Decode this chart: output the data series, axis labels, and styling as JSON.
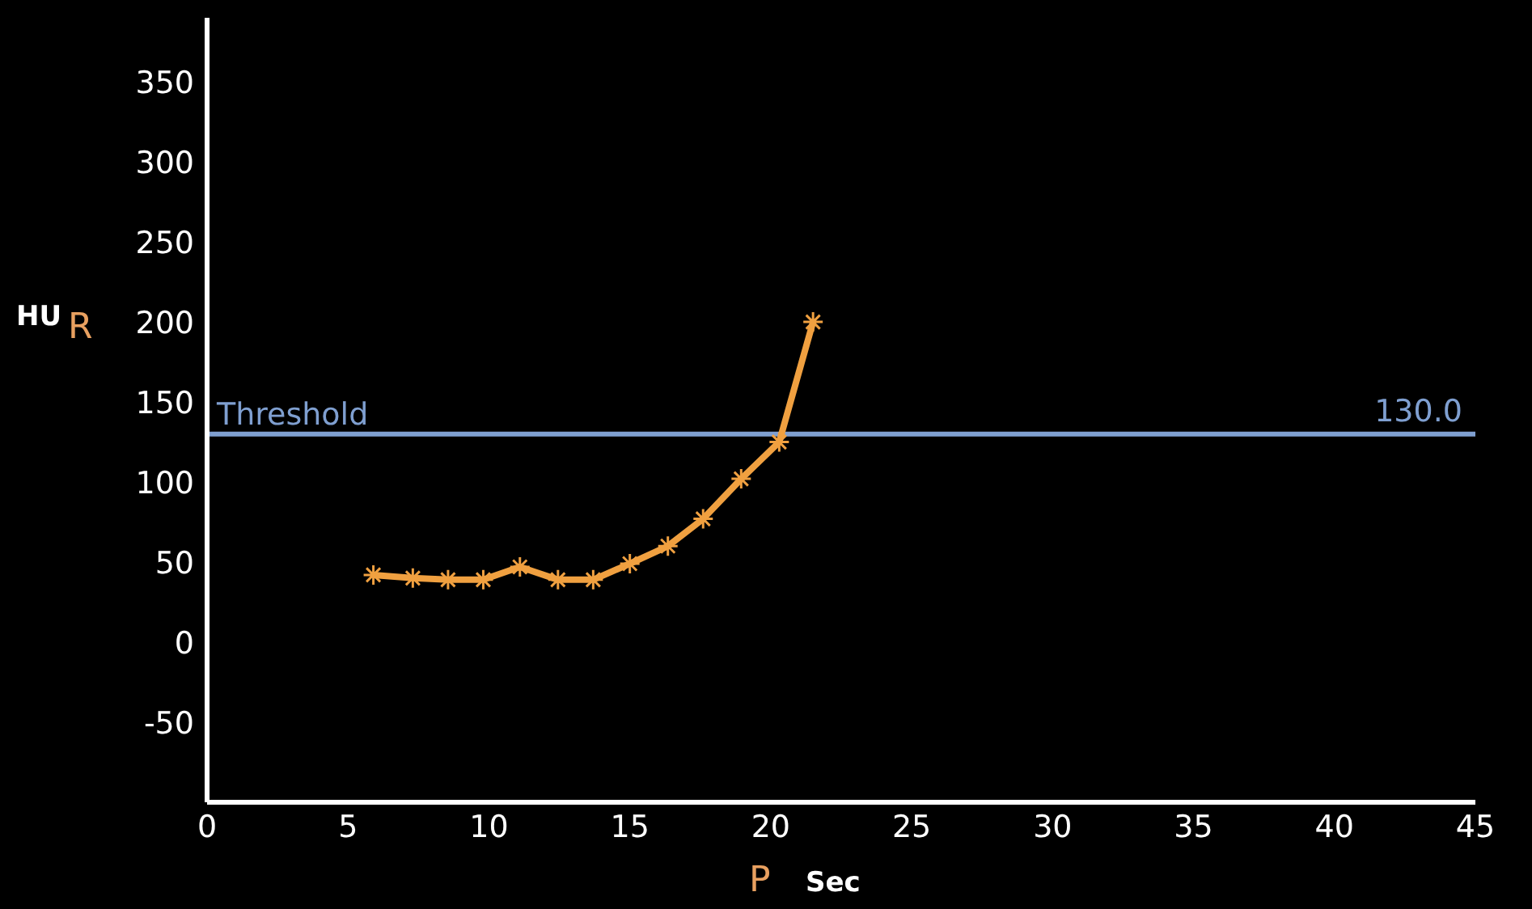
{
  "chart_data": {
    "type": "line",
    "xlabel": "Sec",
    "ylabel": "HU",
    "x": [
      5.9,
      7.3,
      8.55,
      9.8,
      11.1,
      12.45,
      13.7,
      15.0,
      16.35,
      17.6,
      18.95,
      20.3,
      21.5
    ],
    "series": [
      {
        "color": "#f0a040",
        "values": [
          42,
          40,
          39,
          39,
          47,
          39,
          39,
          49,
          60,
          77,
          102,
          125,
          200
        ]
      }
    ],
    "xlim": [
      0,
      45
    ],
    "xticks": [
      0,
      5,
      10,
      15,
      20,
      25,
      30,
      35,
      40,
      45
    ],
    "ylim": [
      -100,
      390
    ],
    "yticks": [
      -50,
      0,
      50,
      100,
      150,
      200,
      250,
      300,
      350
    ],
    "grid": false,
    "legend": false,
    "marker": "cross",
    "line_style": "solid",
    "ref_lines": [
      {
        "axis": "y",
        "value": 130,
        "label": "Threshold",
        "color": "#7f9fd0"
      }
    ],
    "annotations": [
      {
        "text": "130.0",
        "x": 45,
        "y": 130
      },
      "R",
      "P"
    ]
  }
}
